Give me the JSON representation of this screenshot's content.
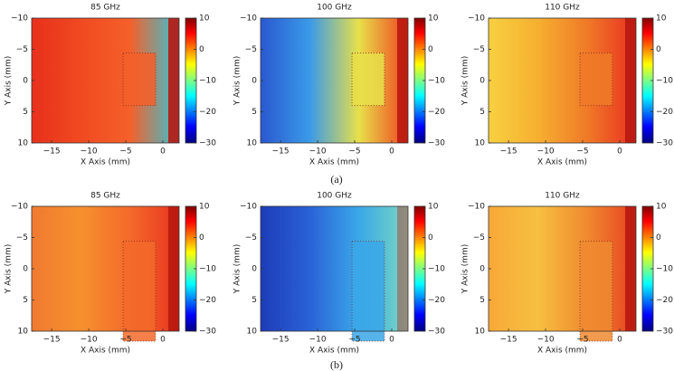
{
  "chart_data": [
    {
      "type": "heatmap",
      "title": "85 GHz",
      "xlabel": "X Axis (mm)",
      "ylabel": "Y Axis (mm)",
      "xlim": [
        -17.7,
        2.2
      ],
      "ylim": [
        -10,
        10
      ],
      "yreverse": true,
      "xticks": [
        {
          "value": -15,
          "label": "−15"
        },
        {
          "value": -10,
          "label": "−10"
        },
        {
          "value": -5,
          "label": "−5"
        },
        0
      ],
      "yticks": [
        {
          "value": -10,
          "label": "−10"
        },
        {
          "value": -5,
          "label": "−5"
        },
        0,
        5,
        10
      ],
      "clim": [
        -30,
        10
      ],
      "cticks": [
        10,
        0,
        {
          "value": -10,
          "label": "−10"
        },
        {
          "value": -20,
          "label": "−20"
        },
        {
          "value": -30,
          "label": "−30"
        }
      ]
    },
    {
      "type": "heatmap",
      "title": "100 GHz",
      "xlabel": "X Axis (mm)",
      "ylabel": "Y Axis (mm)",
      "xlim": [
        -17.7,
        2.2
      ],
      "ylim": [
        -10,
        10
      ],
      "yreverse": true,
      "xticks": [
        {
          "value": -15,
          "label": "−15"
        },
        {
          "value": -10,
          "label": "−10"
        },
        {
          "value": -5,
          "label": "−5"
        },
        0
      ],
      "yticks": [
        {
          "value": -10,
          "label": "−10"
        },
        {
          "value": -5,
          "label": "−5"
        },
        0,
        5,
        10
      ],
      "clim": [
        -30,
        10
      ],
      "cticks": [
        10,
        0,
        {
          "value": -10,
          "label": "−10"
        },
        {
          "value": -20,
          "label": "−20"
        },
        {
          "value": -30,
          "label": "−30"
        }
      ]
    },
    {
      "type": "heatmap",
      "title": "110 GHz",
      "xlabel": "X Axis (mm)",
      "ylabel": "Y Axis (mm)",
      "xlim": [
        -17.7,
        2.2
      ],
      "ylim": [
        -10,
        10
      ],
      "yreverse": true,
      "xticks": [
        {
          "value": -15,
          "label": "−15"
        },
        {
          "value": -10,
          "label": "−10"
        },
        {
          "value": -5,
          "label": "−5"
        },
        0
      ],
      "yticks": [
        {
          "value": -10,
          "label": "−10"
        },
        {
          "value": -5,
          "label": "−5"
        },
        0,
        5,
        10
      ],
      "clim": [
        -30,
        10
      ],
      "cticks": [
        10,
        0,
        {
          "value": -10,
          "label": "−10"
        },
        {
          "value": -20,
          "label": "−20"
        },
        {
          "value": -30,
          "label": "−30"
        }
      ]
    },
    {
      "type": "heatmap",
      "title": "85 GHz",
      "xlabel": "X Axis (mm)",
      "ylabel": "Y Axis (mm)",
      "xlim": [
        -17.7,
        2.2
      ],
      "ylim": [
        -10,
        10
      ],
      "yreverse": true,
      "xticks": [
        {
          "value": -15,
          "label": "−15"
        },
        {
          "value": -10,
          "label": "−10"
        },
        {
          "value": -5,
          "label": "−5"
        },
        0
      ],
      "yticks": [
        {
          "value": -10,
          "label": "−10"
        },
        {
          "value": -5,
          "label": "−5"
        },
        0,
        5,
        10
      ],
      "clim": [
        -30,
        10
      ],
      "cticks": [
        10,
        0,
        {
          "value": -10,
          "label": "−10"
        },
        {
          "value": -20,
          "label": "−20"
        },
        {
          "value": -30,
          "label": "−30"
        }
      ]
    },
    {
      "type": "heatmap",
      "title": "100 GHz",
      "xlabel": "X Axis (mm)",
      "ylabel": "Y Axis (mm)",
      "xlim": [
        -17.7,
        2.2
      ],
      "ylim": [
        -10,
        10
      ],
      "yreverse": true,
      "xticks": [
        {
          "value": -15,
          "label": "−15"
        },
        {
          "value": -10,
          "label": "−10"
        },
        {
          "value": -5,
          "label": "−5"
        },
        0
      ],
      "yticks": [
        {
          "value": -10,
          "label": "−10"
        },
        {
          "value": -5,
          "label": "−5"
        },
        0,
        5,
        10
      ],
      "clim": [
        -30,
        10
      ],
      "cticks": [
        10,
        0,
        {
          "value": -10,
          "label": "−10"
        },
        {
          "value": -20,
          "label": "−20"
        },
        {
          "value": -30,
          "label": "−30"
        }
      ]
    },
    {
      "type": "heatmap",
      "title": "110 GHz",
      "xlabel": "X Axis (mm)",
      "ylabel": "Y Axis (mm)",
      "xlim": [
        -17.7,
        2.2
      ],
      "ylim": [
        -10,
        10
      ],
      "yreverse": true,
      "xticks": [
        {
          "value": -15,
          "label": "−15"
        },
        {
          "value": -10,
          "label": "−10"
        },
        {
          "value": -5,
          "label": "−5"
        },
        0
      ],
      "yticks": [
        {
          "value": -10,
          "label": "−10"
        },
        {
          "value": -5,
          "label": "−5"
        },
        0,
        5,
        10
      ],
      "clim": [
        -30,
        10
      ],
      "cticks": [
        10,
        0,
        {
          "value": -10,
          "label": "−10"
        },
        {
          "value": -20,
          "label": "−20"
        },
        {
          "value": -30,
          "label": "−30"
        }
      ]
    }
  ],
  "captions": [
    "(a)",
    "(b)"
  ]
}
